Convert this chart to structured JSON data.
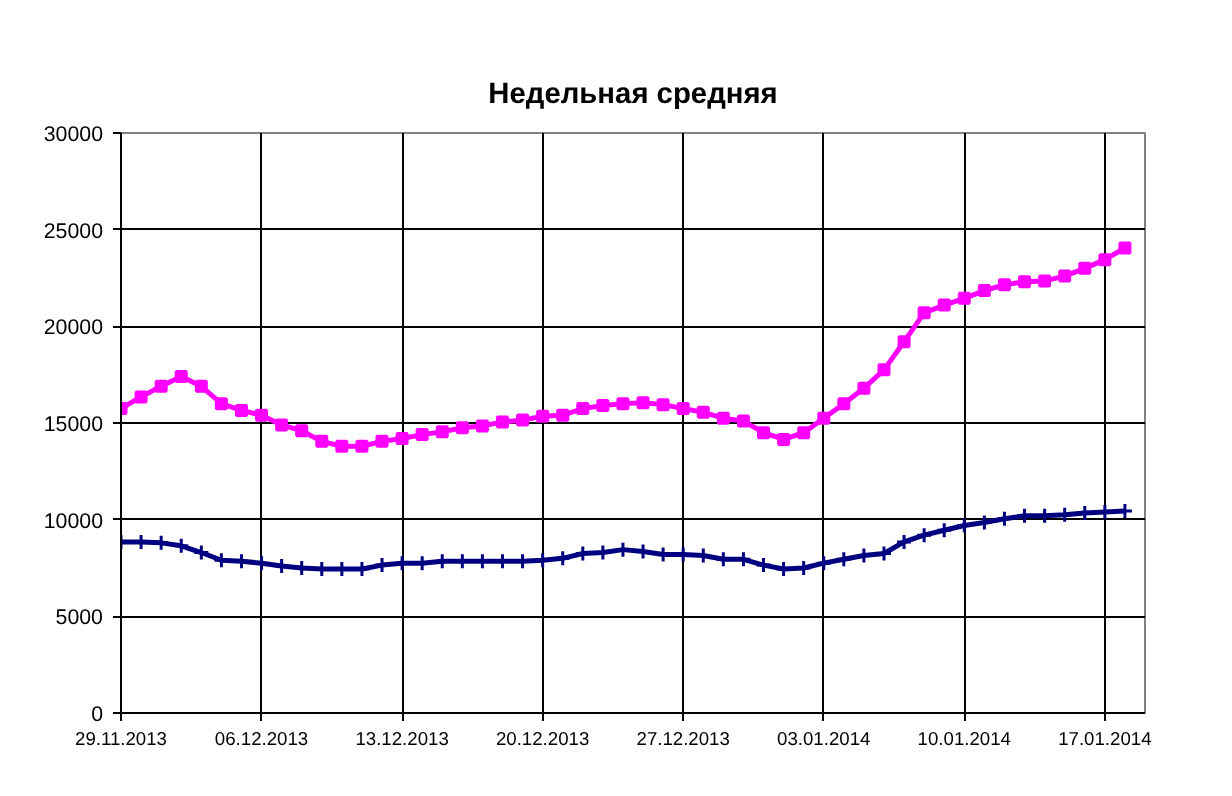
{
  "chart_data": {
    "type": "line",
    "title": "Недельная средняя",
    "x": [
      "2013-11-29",
      "2013-11-30",
      "2013-12-01",
      "2013-12-02",
      "2013-12-03",
      "2013-12-04",
      "2013-12-05",
      "2013-12-06",
      "2013-12-07",
      "2013-12-08",
      "2013-12-09",
      "2013-12-10",
      "2013-12-11",
      "2013-12-12",
      "2013-12-13",
      "2013-12-14",
      "2013-12-15",
      "2013-12-16",
      "2013-12-17",
      "2013-12-18",
      "2013-12-19",
      "2013-12-20",
      "2013-12-21",
      "2013-12-22",
      "2013-12-23",
      "2013-12-24",
      "2013-12-25",
      "2013-12-26",
      "2013-12-27",
      "2013-12-28",
      "2013-12-29",
      "2013-12-30",
      "2013-12-31",
      "2014-01-01",
      "2014-01-02",
      "2014-01-03",
      "2014-01-04",
      "2014-01-05",
      "2014-01-06",
      "2014-01-07",
      "2014-01-08",
      "2014-01-09",
      "2014-01-10",
      "2014-01-11",
      "2014-01-12",
      "2014-01-13",
      "2014-01-14",
      "2014-01-15",
      "2014-01-16",
      "2014-01-17",
      "2014-01-18"
    ],
    "series": [
      {
        "color": "#ff00ff",
        "marker": "square",
        "values": [
          15750,
          16350,
          16900,
          17400,
          16900,
          16000,
          15650,
          15400,
          14900,
          14600,
          14050,
          13800,
          13800,
          14050,
          14200,
          14400,
          14550,
          14750,
          14850,
          15050,
          15150,
          15350,
          15400,
          15750,
          15900,
          16000,
          16050,
          15950,
          15750,
          15550,
          15250,
          15100,
          14500,
          14150,
          14500,
          15250,
          16000,
          16800,
          17750,
          19200,
          20700,
          21100,
          21450,
          21850,
          22150,
          22300,
          22350,
          22600,
          23000,
          23450,
          24050
        ]
      },
      {
        "color": "#000080",
        "marker": "cross",
        "values": [
          8850,
          8850,
          8800,
          8650,
          8300,
          7900,
          7850,
          7750,
          7600,
          7500,
          7450,
          7450,
          7450,
          7650,
          7750,
          7750,
          7850,
          7850,
          7850,
          7850,
          7850,
          7900,
          8000,
          8250,
          8300,
          8450,
          8350,
          8200,
          8200,
          8150,
          7950,
          7950,
          7650,
          7450,
          7500,
          7750,
          7950,
          8150,
          8250,
          8850,
          9200,
          9450,
          9700,
          9850,
          10050,
          10200,
          10200,
          10250,
          10350,
          10400,
          10450
        ]
      }
    ],
    "xlim": [
      "2013-11-29",
      "2014-01-19"
    ],
    "xticks": [
      {
        "value": "2013-11-29",
        "label": "29.11.2013"
      },
      {
        "value": "2013-12-06",
        "label": "06.12.2013"
      },
      {
        "value": "2013-12-13",
        "label": "13.12.2013"
      },
      {
        "value": "2013-12-20",
        "label": "20.12.2013"
      },
      {
        "value": "2013-12-27",
        "label": "27.12.2013"
      },
      {
        "value": "2014-01-03",
        "label": "03.01.2014"
      },
      {
        "value": "2014-01-10",
        "label": "10.01.2014"
      },
      {
        "value": "2014-01-17",
        "label": "17.01.2014"
      }
    ],
    "ylim": [
      0,
      30000
    ],
    "yticks": [
      0,
      5000,
      10000,
      15000,
      20000,
      25000,
      30000
    ],
    "grid": true,
    "line_style": "solid"
  }
}
